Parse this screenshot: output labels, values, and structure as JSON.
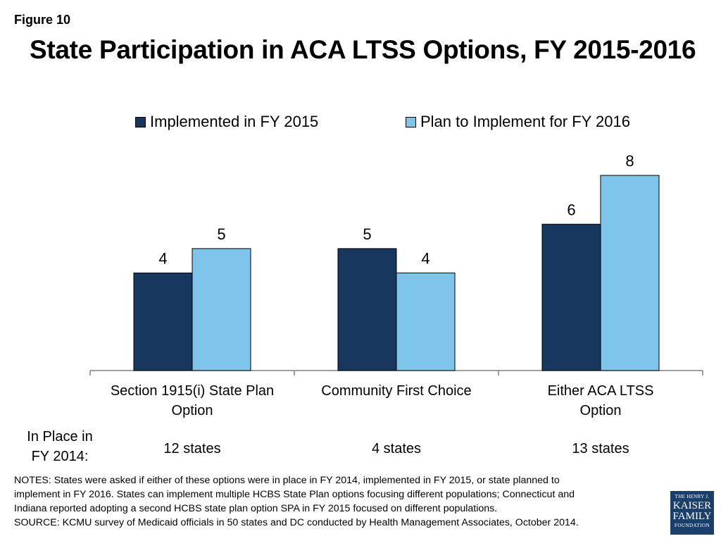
{
  "figure_label": "Figure 10",
  "title": "State Participation in ACA LTSS Options, FY 2015-2016",
  "colors": {
    "implemented": "#17375e",
    "plan": "#7fc4eb"
  },
  "chart_data": {
    "type": "bar",
    "categories": [
      "Section 1915(i) State Plan Option",
      "Community First Choice",
      "Either ACA LTSS Option"
    ],
    "category_lines": [
      [
        "Section 1915(i) State Plan",
        "Option"
      ],
      [
        "Community First Choice"
      ],
      [
        "Either ACA LTSS",
        "Option"
      ]
    ],
    "series": [
      {
        "name": "Implemented in FY 2015",
        "values": [
          4,
          5,
          6
        ]
      },
      {
        "name": "Plan to Implement for FY 2016",
        "values": [
          5,
          4,
          8
        ]
      }
    ],
    "ylim": [
      0,
      8
    ],
    "grid": false,
    "legend": "top"
  },
  "in_place": {
    "title_lines": [
      "In Place in",
      "FY 2014:"
    ],
    "values": [
      "12 states",
      "4 states",
      "13 states"
    ]
  },
  "notes": [
    "NOTES: States were asked if either of these options were in place in FY 2014, implemented in FY 2015, or state planned to",
    "implement in FY 2016. States can implement multiple HCBS State Plan options focusing different populations; Connecticut and",
    "Indiana reported adopting a second HCBS state plan option  SPA  in FY 2015 focused on different populations.",
    "SOURCE: KCMU survey of Medicaid officials in 50 states and DC conducted by Health Management Associates, October 2014."
  ],
  "logo": {
    "line1": "THE HENRY J.",
    "line2": "KAISER",
    "line3": "FAMILY",
    "line4": "FOUNDATION"
  }
}
